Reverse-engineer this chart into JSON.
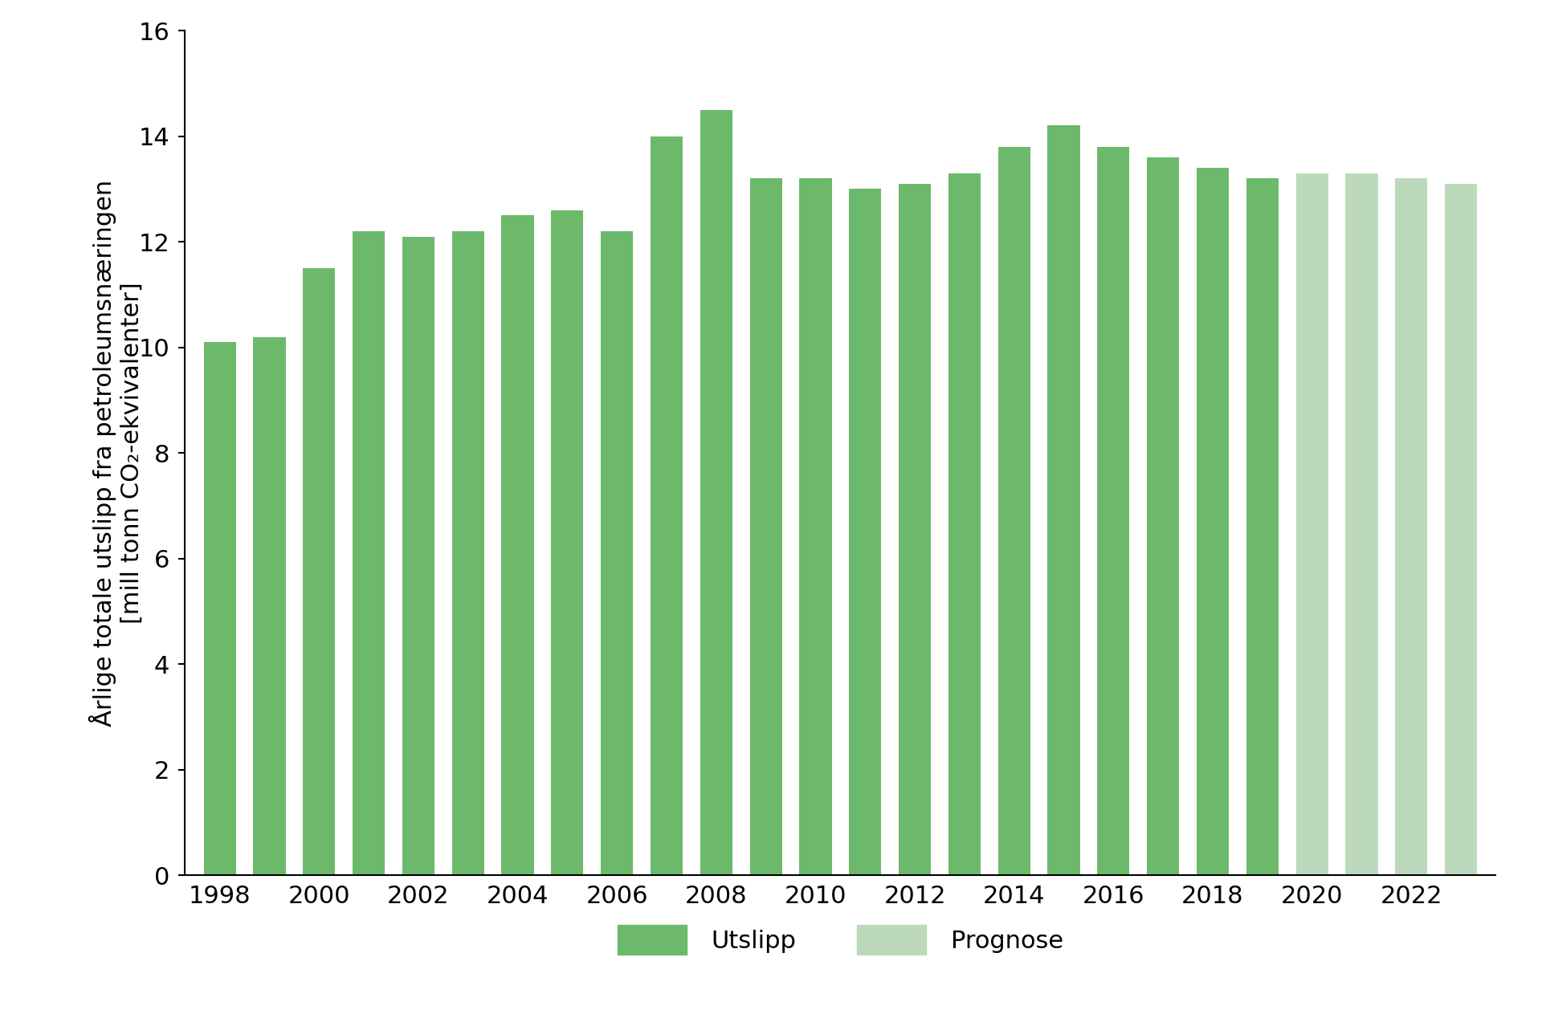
{
  "years": [
    1998,
    1999,
    2000,
    2001,
    2002,
    2003,
    2004,
    2005,
    2006,
    2007,
    2008,
    2009,
    2010,
    2011,
    2012,
    2013,
    2014,
    2015,
    2016,
    2017,
    2018,
    2019,
    2020,
    2021,
    2022,
    2023
  ],
  "values": [
    10.1,
    10.2,
    11.5,
    12.2,
    12.1,
    12.2,
    12.5,
    12.6,
    12.2,
    14.0,
    14.5,
    13.2,
    13.2,
    13.0,
    13.1,
    13.3,
    13.8,
    14.2,
    13.8,
    13.6,
    13.4,
    13.2,
    13.3,
    13.3,
    13.2,
    13.1
  ],
  "is_prognose": [
    false,
    false,
    false,
    false,
    false,
    false,
    false,
    false,
    false,
    false,
    false,
    false,
    false,
    false,
    false,
    false,
    false,
    false,
    false,
    false,
    false,
    false,
    true,
    true,
    true,
    true
  ],
  "color_utslipp": "#6DB96B",
  "color_prognose": "#BCD9BC",
  "ylim": [
    0,
    16
  ],
  "yticks": [
    0,
    2,
    4,
    6,
    8,
    10,
    12,
    14,
    16
  ],
  "legend_utslipp": "Utslipp",
  "legend_prognose": "Prognose",
  "background_color": "#FFFFFF",
  "bar_width": 0.65,
  "ylabel_line1": "Årlige totale utslipp fra petroleumsnæringen",
  "ylabel_line2": "[mill tonn CO₂-ekvivalenter]",
  "tick_fontsize": 22,
  "ylabel_fontsize": 22,
  "legend_fontsize": 22
}
